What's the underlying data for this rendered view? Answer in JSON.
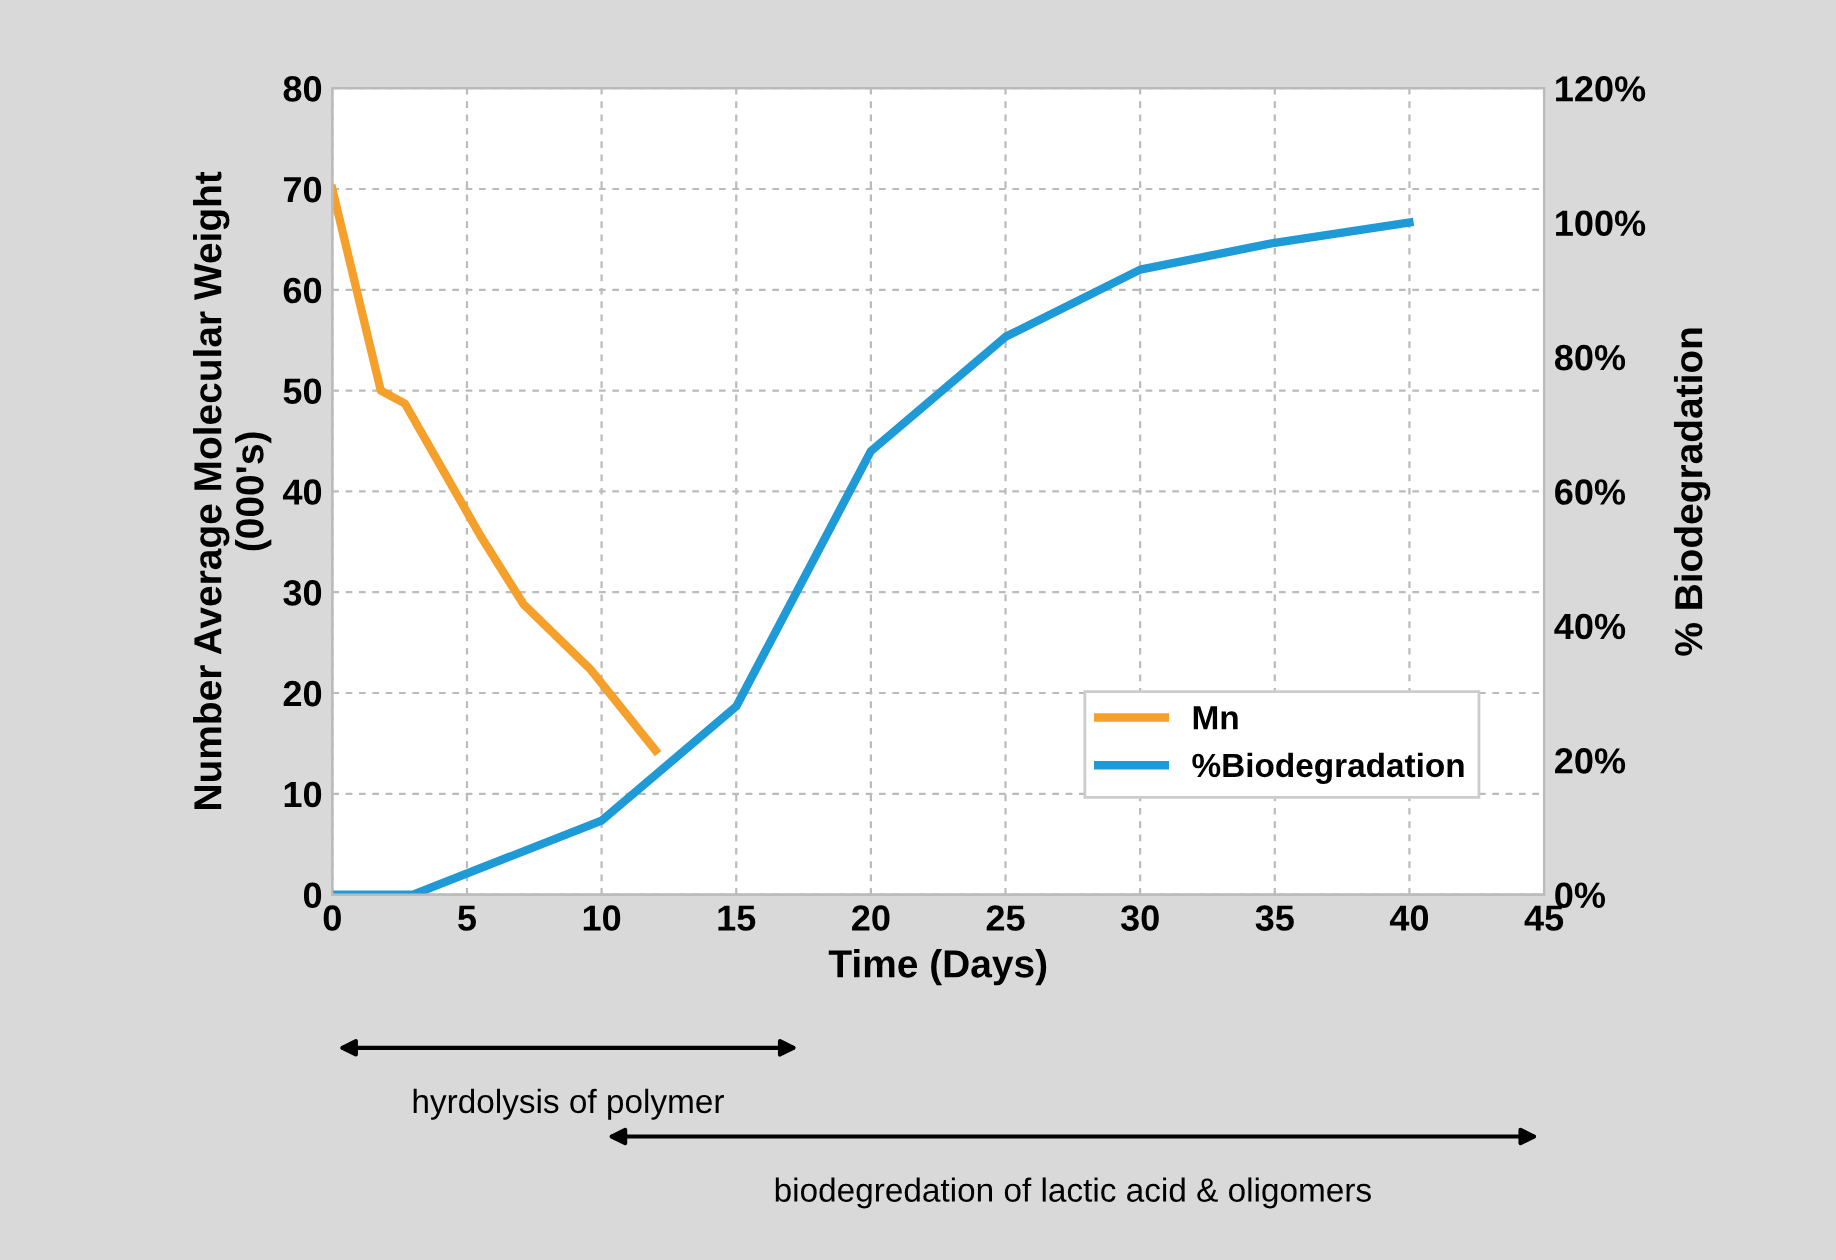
{
  "chart_data": {
    "type": "line",
    "xlabel": "Time (Days)",
    "ylabel": "Number Average Molecular Weight\n(000's)",
    "y2label": "% Biodegradation",
    "series": [
      {
        "name": "Mn",
        "color": "#f5a02a",
        "x": [
          0,
          1.8,
          2.7,
          5.5,
          7.1,
          9.6,
          12
        ],
        "values": [
          70,
          50,
          48.7,
          35.6,
          28.8,
          22.3,
          14.3
        ]
      },
      {
        "name": "%Biodegradation",
        "color": "#1e9ad6",
        "axis": "y2",
        "x": [
          0,
          3,
          10,
          15,
          20,
          25,
          30,
          35,
          40
        ],
        "values": [
          0,
          0,
          11,
          28,
          66,
          83,
          93,
          97,
          100
        ]
      }
    ],
    "xlim": [
      0,
      45
    ],
    "xticks": [
      0,
      5,
      10,
      15,
      20,
      25,
      30,
      35,
      40,
      45
    ],
    "ylim": [
      0,
      80
    ],
    "yticks": [
      0,
      10,
      20,
      30,
      40,
      50,
      60,
      70,
      80
    ],
    "y2lim": [
      0,
      120
    ],
    "y2ticks": [
      {
        "value": 0,
        "label": "0%"
      },
      {
        "value": 20,
        "label": "20%"
      },
      {
        "value": 40,
        "label": "40%"
      },
      {
        "value": 60,
        "label": "60%"
      },
      {
        "value": 80,
        "label": "80%"
      },
      {
        "value": 100,
        "label": "100%"
      },
      {
        "value": 120,
        "label": "120%"
      }
    ],
    "grid": true,
    "legend": "bottom right",
    "marker": "none",
    "line_style": "solid",
    "annotations": [
      "hyrdolysis of polymer",
      "biodegredation of lactic acid & oligomers"
    ]
  }
}
